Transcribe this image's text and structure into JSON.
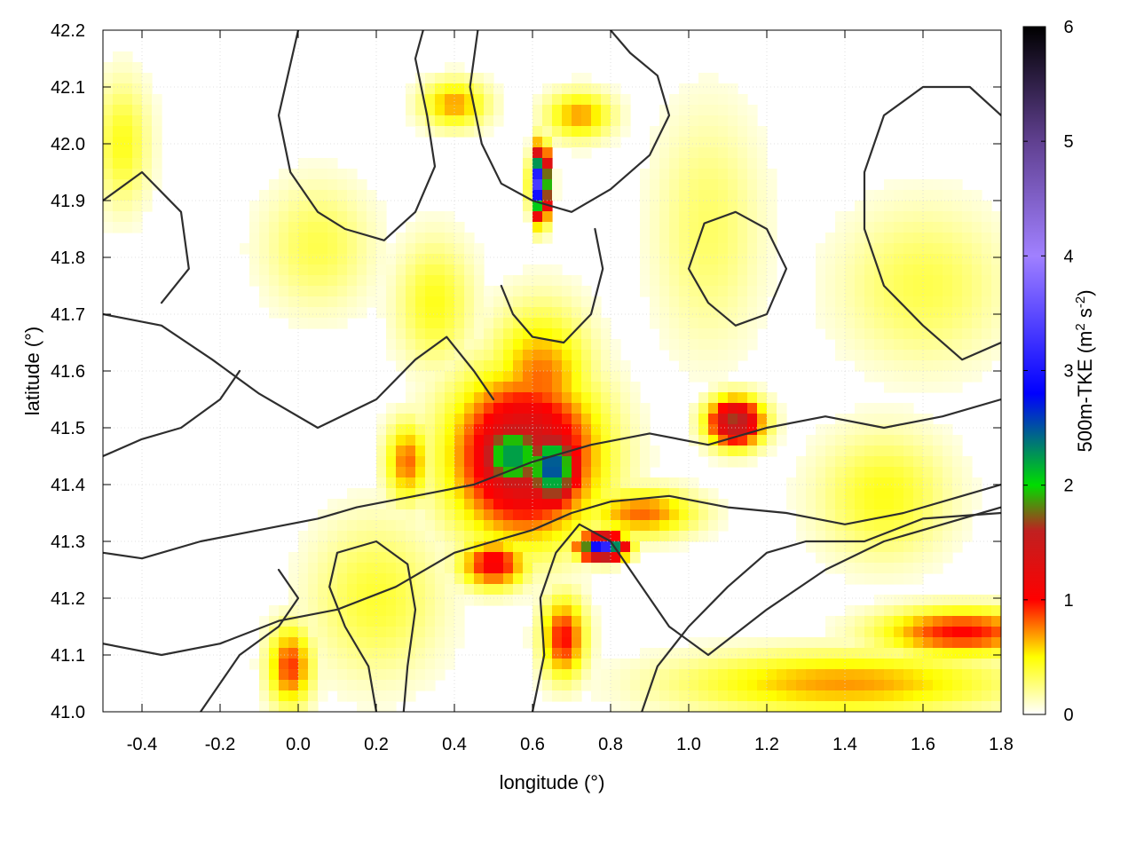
{
  "chart_data": {
    "type": "heatmap",
    "xlabel": "longitude (°)",
    "ylabel": "latitude (°)",
    "xlim": [
      -0.5,
      1.8
    ],
    "ylim": [
      41.0,
      42.2
    ],
    "x_ticks": [
      "-0.4",
      "-0.2",
      "0.0",
      "0.2",
      "0.4",
      "0.6",
      "0.8",
      "1.0",
      "1.2",
      "1.4",
      "1.6",
      "1.8"
    ],
    "x_tick_values": [
      -0.4,
      -0.2,
      0.0,
      0.2,
      0.4,
      0.6,
      0.8,
      1.0,
      1.2,
      1.4,
      1.6,
      1.8
    ],
    "y_ticks": [
      "41.0",
      "41.1",
      "41.2",
      "41.3",
      "41.4",
      "41.5",
      "41.6",
      "41.7",
      "41.8",
      "41.9",
      "42.0",
      "42.1",
      "42.2"
    ],
    "y_tick_values": [
      41.0,
      41.1,
      41.2,
      41.3,
      41.4,
      41.5,
      41.6,
      41.7,
      41.8,
      41.9,
      42.0,
      42.1,
      42.2
    ],
    "grid": true,
    "colorbar": {
      "label": "500m-TKE (m² s⁻²)",
      "label_main": "500m-TKE (m",
      "label_sup1": "2",
      "label_mid": " s",
      "label_sup2": "-2",
      "label_end": ")",
      "range": [
        0,
        6
      ],
      "ticks": [
        "0",
        "1",
        "2",
        "3",
        "4",
        "5",
        "6"
      ],
      "tick_values": [
        0,
        1,
        2,
        3,
        4,
        5,
        6
      ],
      "palette": [
        {
          "value": 0.0,
          "color": "#ffffff"
        },
        {
          "value": 0.5,
          "color": "#ffff00"
        },
        {
          "value": 1.0,
          "color": "#ff0000"
        },
        {
          "value": 1.6,
          "color": "#c02020"
        },
        {
          "value": 2.0,
          "color": "#00dd00"
        },
        {
          "value": 2.8,
          "color": "#0000ff"
        },
        {
          "value": 4.0,
          "color": "#a080ff"
        },
        {
          "value": 5.0,
          "color": "#604090"
        },
        {
          "value": 6.0,
          "color": "#000000"
        }
      ]
    },
    "tke_features": [
      {
        "lon": 0.58,
        "lat": 41.45,
        "sx": 0.13,
        "sy": 0.1,
        "tke": 1.6
      },
      {
        "lon": 0.55,
        "lat": 41.45,
        "sx": 0.07,
        "sy": 0.05,
        "tke": 2.3
      },
      {
        "lon": 0.65,
        "lat": 41.43,
        "sx": 0.05,
        "sy": 0.05,
        "tke": 2.6
      },
      {
        "lon": 0.62,
        "lat": 41.58,
        "sx": 0.09,
        "sy": 0.09,
        "tke": 0.8
      },
      {
        "lon": 0.62,
        "lat": 41.93,
        "sx": 0.015,
        "sy": 0.04,
        "tke": 3.8
      },
      {
        "lon": 0.78,
        "lat": 41.29,
        "sx": 0.04,
        "sy": 0.015,
        "tke": 3.2
      },
      {
        "lon": 0.5,
        "lat": 41.26,
        "sx": 0.06,
        "sy": 0.03,
        "tke": 1.1
      },
      {
        "lon": 1.12,
        "lat": 41.51,
        "sx": 0.05,
        "sy": 0.03,
        "tke": 1.7
      },
      {
        "lon": 0.88,
        "lat": 41.35,
        "sx": 0.1,
        "sy": 0.03,
        "tke": 0.8
      },
      {
        "lon": 0.35,
        "lat": 41.72,
        "sx": 0.07,
        "sy": 0.08,
        "tke": 0.45
      },
      {
        "lon": 0.28,
        "lat": 41.44,
        "sx": 0.04,
        "sy": 0.05,
        "tke": 0.8
      },
      {
        "lon": 0.72,
        "lat": 42.05,
        "sx": 0.06,
        "sy": 0.03,
        "tke": 0.7
      },
      {
        "lon": 0.4,
        "lat": 42.07,
        "sx": 0.06,
        "sy": 0.03,
        "tke": 0.7
      },
      {
        "lon": -0.45,
        "lat": 42.0,
        "sx": 0.05,
        "sy": 0.08,
        "tke": 0.45
      },
      {
        "lon": -0.02,
        "lat": 41.08,
        "sx": 0.04,
        "sy": 0.05,
        "tke": 0.9
      },
      {
        "lon": 0.2,
        "lat": 41.2,
        "sx": 0.12,
        "sy": 0.1,
        "tke": 0.4
      },
      {
        "lon": 0.68,
        "lat": 41.13,
        "sx": 0.04,
        "sy": 0.05,
        "tke": 1.0
      },
      {
        "lon": 1.4,
        "lat": 41.05,
        "sx": 0.3,
        "sy": 0.04,
        "tke": 0.7
      },
      {
        "lon": 1.7,
        "lat": 41.14,
        "sx": 0.15,
        "sy": 0.03,
        "tke": 1.0
      },
      {
        "lon": 1.5,
        "lat": 41.38,
        "sx": 0.12,
        "sy": 0.08,
        "tke": 0.45
      },
      {
        "lon": 1.6,
        "lat": 41.75,
        "sx": 0.15,
        "sy": 0.1,
        "tke": 0.35
      },
      {
        "lon": 0.05,
        "lat": 41.82,
        "sx": 0.1,
        "sy": 0.08,
        "tke": 0.35
      },
      {
        "lon": 1.05,
        "lat": 41.85,
        "sx": 0.1,
        "sy": 0.15,
        "tke": 0.3
      }
    ],
    "contours": [
      [
        [
          -0.5,
          41.28
        ],
        [
          -0.4,
          41.27
        ],
        [
          -0.25,
          41.3
        ],
        [
          -0.1,
          41.32
        ],
        [
          0.05,
          41.34
        ],
        [
          0.15,
          41.36
        ],
        [
          0.3,
          41.38
        ],
        [
          0.45,
          41.4
        ],
        [
          0.6,
          41.44
        ],
        [
          0.75,
          41.47
        ],
        [
          0.9,
          41.49
        ],
        [
          1.05,
          41.47
        ],
        [
          1.2,
          41.5
        ],
        [
          1.35,
          41.52
        ],
        [
          1.5,
          41.5
        ],
        [
          1.65,
          41.52
        ],
        [
          1.8,
          41.55
        ]
      ],
      [
        [
          -0.5,
          41.12
        ],
        [
          -0.35,
          41.1
        ],
        [
          -0.2,
          41.12
        ],
        [
          -0.05,
          41.16
        ],
        [
          0.1,
          41.18
        ],
        [
          0.25,
          41.22
        ],
        [
          0.4,
          41.28
        ],
        [
          0.5,
          41.3
        ],
        [
          0.6,
          41.32
        ],
        [
          0.7,
          41.35
        ],
        [
          0.8,
          41.37
        ],
        [
          0.95,
          41.38
        ],
        [
          1.1,
          41.36
        ],
        [
          1.25,
          41.35
        ],
        [
          1.4,
          41.33
        ],
        [
          1.55,
          41.35
        ],
        [
          1.7,
          41.38
        ],
        [
          1.8,
          41.4
        ]
      ],
      [
        [
          0.6,
          41.0
        ],
        [
          0.63,
          41.1
        ],
        [
          0.62,
          41.2
        ],
        [
          0.66,
          41.28
        ],
        [
          0.72,
          41.33
        ],
        [
          0.8,
          41.3
        ],
        [
          0.88,
          41.22
        ],
        [
          0.95,
          41.15
        ],
        [
          1.05,
          41.1
        ],
        [
          1.2,
          41.18
        ],
        [
          1.35,
          41.25
        ],
        [
          1.5,
          41.3
        ],
        [
          1.65,
          41.33
        ],
        [
          1.8,
          41.36
        ]
      ],
      [
        [
          0.88,
          41.0
        ],
        [
          0.92,
          41.08
        ],
        [
          1.0,
          41.15
        ],
        [
          1.1,
          41.22
        ],
        [
          1.2,
          41.28
        ],
        [
          1.3,
          41.3
        ],
        [
          1.45,
          41.3
        ],
        [
          1.6,
          41.34
        ],
        [
          1.8,
          41.35
        ]
      ],
      [
        [
          -0.5,
          41.7
        ],
        [
          -0.35,
          41.68
        ],
        [
          -0.22,
          41.62
        ],
        [
          -0.1,
          41.56
        ],
        [
          0.05,
          41.5
        ],
        [
          0.2,
          41.55
        ],
        [
          0.3,
          41.62
        ],
        [
          0.38,
          41.66
        ],
        [
          0.45,
          41.6
        ],
        [
          0.5,
          41.55
        ]
      ],
      [
        [
          0.0,
          42.2
        ],
        [
          -0.05,
          42.05
        ],
        [
          -0.02,
          41.95
        ],
        [
          0.05,
          41.88
        ],
        [
          0.12,
          41.85
        ],
        [
          0.22,
          41.83
        ],
        [
          0.3,
          41.88
        ],
        [
          0.35,
          41.96
        ],
        [
          0.33,
          42.05
        ],
        [
          0.3,
          42.15
        ],
        [
          0.32,
          42.2
        ]
      ],
      [
        [
          0.46,
          42.2
        ],
        [
          0.44,
          42.1
        ],
        [
          0.47,
          42.0
        ],
        [
          0.52,
          41.93
        ],
        [
          0.6,
          41.9
        ],
        [
          0.7,
          41.88
        ],
        [
          0.8,
          41.92
        ],
        [
          0.9,
          41.98
        ],
        [
          0.95,
          42.05
        ],
        [
          0.92,
          42.12
        ],
        [
          0.85,
          42.16
        ],
        [
          0.8,
          42.2
        ]
      ],
      [
        [
          -0.5,
          41.45
        ],
        [
          -0.4,
          41.48
        ],
        [
          -0.3,
          41.5
        ],
        [
          -0.2,
          41.55
        ],
        [
          -0.15,
          41.6
        ]
      ],
      [
        [
          1.8,
          41.65
        ],
        [
          1.7,
          41.62
        ],
        [
          1.6,
          41.68
        ],
        [
          1.5,
          41.75
        ],
        [
          1.45,
          41.85
        ],
        [
          1.45,
          41.95
        ],
        [
          1.5,
          42.05
        ],
        [
          1.6,
          42.1
        ],
        [
          1.72,
          42.1
        ],
        [
          1.8,
          42.05
        ]
      ],
      [
        [
          0.52,
          41.75
        ],
        [
          0.55,
          41.7
        ],
        [
          0.6,
          41.66
        ],
        [
          0.68,
          41.65
        ],
        [
          0.75,
          41.7
        ],
        [
          0.78,
          41.78
        ],
        [
          0.76,
          41.85
        ]
      ],
      [
        [
          -0.5,
          41.9
        ],
        [
          -0.4,
          41.95
        ],
        [
          -0.3,
          41.88
        ],
        [
          -0.28,
          41.78
        ],
        [
          -0.35,
          41.72
        ]
      ],
      [
        [
          1.0,
          41.78
        ],
        [
          1.05,
          41.72
        ],
        [
          1.12,
          41.68
        ],
        [
          1.2,
          41.7
        ],
        [
          1.25,
          41.78
        ],
        [
          1.2,
          41.85
        ],
        [
          1.12,
          41.88
        ],
        [
          1.04,
          41.86
        ],
        [
          1.0,
          41.78
        ]
      ],
      [
        [
          0.2,
          41.0
        ],
        [
          0.18,
          41.08
        ],
        [
          0.12,
          41.15
        ],
        [
          0.08,
          41.22
        ],
        [
          0.1,
          41.28
        ],
        [
          0.2,
          41.3
        ],
        [
          0.28,
          41.26
        ],
        [
          0.3,
          41.18
        ],
        [
          0.28,
          41.08
        ],
        [
          0.27,
          41.0
        ]
      ],
      [
        [
          -0.25,
          41.0
        ],
        [
          -0.2,
          41.05
        ],
        [
          -0.15,
          41.1
        ],
        [
          -0.05,
          41.15
        ],
        [
          0.0,
          41.2
        ],
        [
          -0.05,
          41.25
        ]
      ]
    ]
  }
}
